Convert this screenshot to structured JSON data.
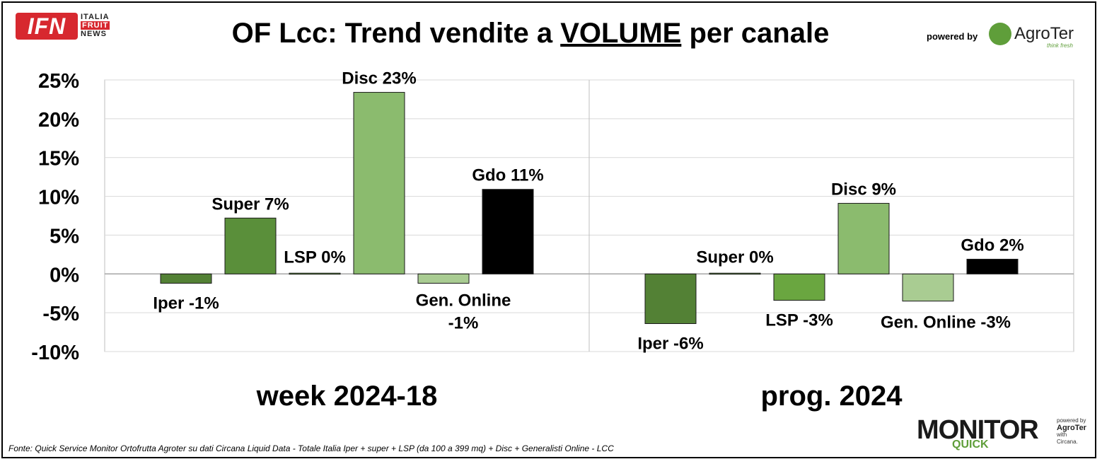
{
  "header": {
    "title_prefix": "OF Lcc: Trend vendite a ",
    "title_underlined": "VOLUME",
    "title_suffix": " per canale",
    "powered_by": "powered by",
    "ifn_logo": {
      "main": "IFN",
      "line1": "ITALIA",
      "line2": "FRUIT",
      "line3": "NEWS"
    },
    "agroter_logo": {
      "word": "AgroTer",
      "tagline": "think fresh"
    }
  },
  "footer": {
    "source": "Fonte: Quick Service Monitor Ortofrutta Agroter su dati Circana Liquid Data - Totale Italia Iper + super + LSP (da 100 a 399 mq) + Disc + Generalisti Online - LCC",
    "monitor_logo": {
      "word": "MONITOR",
      "sub": "QUICK",
      "powered": "powered by",
      "brand": "AgroTer",
      "with": "with",
      "partner": "Circana."
    }
  },
  "chart_data": {
    "type": "bar",
    "ylim": [
      -0.1,
      0.25
    ],
    "yticks": [
      0.25,
      0.2,
      0.15,
      0.1,
      0.05,
      0,
      -0.05,
      -0.1
    ],
    "ytick_labels": [
      "25%",
      "20%",
      "15%",
      "10%",
      "5%",
      "0%",
      "-5%",
      "-10%"
    ],
    "grid": true,
    "legend": "none",
    "series_names": [
      "Iper",
      "Super",
      "LSP",
      "Disc",
      "Gen. Online",
      "Gdo"
    ],
    "series_colors": [
      "#538135",
      "#5a8f3a",
      "#6aa640",
      "#8bbb6e",
      "#a9cc92",
      "#000000"
    ],
    "groups": [
      {
        "label": "week 2024-18",
        "values": [
          -0.012,
          0.072,
          0.001,
          0.234,
          -0.012,
          0.109
        ],
        "labels": [
          "Iper -1%",
          "Super 7%",
          "LSP 0%",
          "Disc 23%",
          "Gen. Online\n-1%",
          "Gdo 11%"
        ]
      },
      {
        "label": "prog. 2024",
        "values": [
          -0.064,
          0.001,
          -0.034,
          0.091,
          -0.035,
          0.019
        ],
        "labels": [
          "Iper -6%",
          "Super 0%",
          "LSP -3%",
          "Disc 9%",
          "Gen. Online -3%",
          "Gdo 2%"
        ]
      }
    ]
  }
}
